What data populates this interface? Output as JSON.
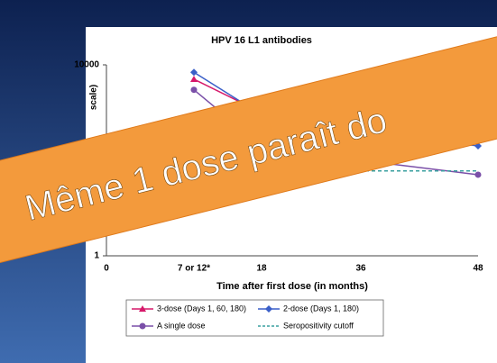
{
  "chart_data": {
    "type": "line",
    "title": "HPV 16 L1 antibodies",
    "y_label": "scale)",
    "x_label": "Time after first dose (in months)",
    "categories": [
      "0",
      "7 or 12*",
      "18",
      "36",
      "48"
    ],
    "log_y": true,
    "ylim": [
      1,
      10000
    ],
    "yticks": [
      1,
      10000
    ],
    "series": [
      {
        "name": "3-dose (Days 1, 60, 180)",
        "color": "#d6186a",
        "marker": "triangle",
        "values": [
          null,
          5000,
          1000,
          500,
          300
        ]
      },
      {
        "name": "2-dose (Days 1, 180)",
        "color": "#3a5fc8",
        "marker": "diamond",
        "values": [
          null,
          7000,
          900,
          400,
          200
        ]
      },
      {
        "name": "A single dose",
        "color": "#7a4fa8",
        "marker": "circle",
        "values": [
          null,
          3000,
          200,
          100,
          50
        ]
      },
      {
        "name": "Seropositivity cutoff",
        "color": "#3aa0a0",
        "dashed": true,
        "values": [
          60,
          60,
          60,
          60,
          60
        ]
      }
    ]
  },
  "banner": {
    "text": "Même 1 dose paraît do"
  }
}
